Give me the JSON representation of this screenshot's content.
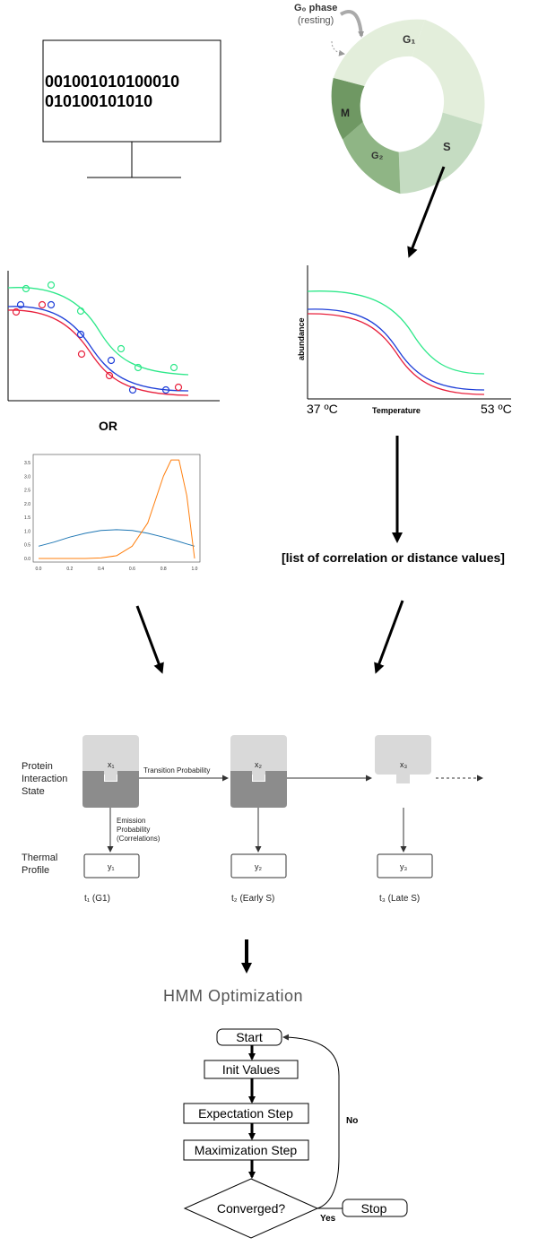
{
  "computer": {
    "binary_line1": "001001010100010",
    "binary_line2": "010100101010"
  },
  "cell_cycle": {
    "g0_label": "G₀ phase",
    "g0_note": "(resting)",
    "g1": "G₁",
    "s": "S",
    "g2": "G₂",
    "m": "M",
    "colors": {
      "g1": "#e3eedb",
      "s": "#c5dcc2",
      "g2": "#8fb585",
      "m": "#6f9863"
    }
  },
  "left_plot": {
    "or_label": "OR"
  },
  "thermal_plot": {
    "ylabel": "abundance",
    "xlabel": "Temperature",
    "x_start": "37 ºC",
    "x_end": "53 ºC",
    "colors": {
      "top": "#2ee88a",
      "middle": "#1f3fd8",
      "bottom": "#e8203c"
    }
  },
  "chart_data": {
    "type": "line",
    "x": [
      0.0,
      0.1,
      0.2,
      0.3,
      0.4,
      0.5,
      0.6,
      0.7,
      0.8,
      0.85,
      0.9,
      0.95,
      1.0
    ],
    "series": [
      {
        "color": "#1f77b4",
        "values": [
          0.45,
          0.6,
          0.78,
          0.92,
          1.02,
          1.05,
          1.02,
          0.92,
          0.78,
          0.7,
          0.62,
          0.53,
          0.45
        ]
      },
      {
        "color": "#ff7f0e",
        "values": [
          0.0,
          0.0,
          0.0,
          0.0,
          0.02,
          0.1,
          0.45,
          1.3,
          3.0,
          3.6,
          3.6,
          2.3,
          0.0
        ]
      }
    ],
    "x_ticks": [
      "0.0",
      "0.2",
      "0.4",
      "0.6",
      "0.8",
      "1.0"
    ],
    "y_ticks": [
      "0.0",
      "0.5",
      "1.0",
      "1.5",
      "2.0",
      "2.5",
      "3.0",
      "3.5"
    ],
    "xlim": [
      0,
      1
    ],
    "ylim": [
      0,
      3.7
    ]
  },
  "list_label": "[list of correlation or distance values]",
  "hmm": {
    "state_label_1": "Protein",
    "state_label_2": "Interaction",
    "state_label_3": "State",
    "profile_label_1": "Thermal",
    "profile_label_2": "Profile",
    "x1": "x₁",
    "x2": "x₂",
    "x3": "x₃",
    "y1": "y₁",
    "y2": "y₂",
    "y3": "y₃",
    "transition": "Transition Probability",
    "emission_1": "Emission",
    "emission_2": "Probability",
    "emission_3": "(Correlations)",
    "t1": "t₁ (G1)",
    "t2": "t₂ (Early S)",
    "t3": "t₃ (Late S)"
  },
  "optimization_title": "HMM Optimization",
  "flowchart": {
    "start": "Start",
    "init": "Init Values",
    "expectation": "Expectation Step",
    "maximization": "Maximization Step",
    "converged": "Converged?",
    "yes": "Yes",
    "no": "No",
    "stop": "Stop"
  }
}
